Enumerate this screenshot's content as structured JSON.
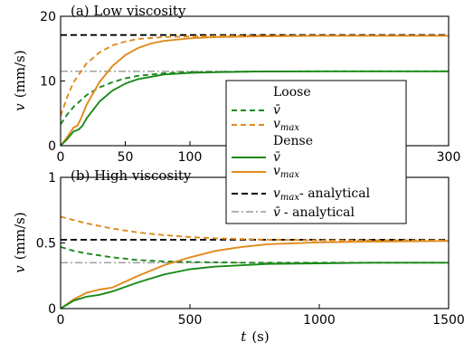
{
  "chart_data": [
    {
      "type": "line",
      "title": "(a) Low viscosity",
      "xlabel": "",
      "ylabel_symbol": "v",
      "ylabel_unit": "(mm/s)",
      "xlim": [
        0,
        300
      ],
      "ylim": [
        0,
        20
      ],
      "x_ticks": [
        0,
        50,
        100,
        300
      ],
      "x_tick_labels": [
        "0",
        "50",
        "100",
        "300"
      ],
      "y_ticks": [
        0,
        10,
        20
      ],
      "y_tick_labels": [
        "0",
        "10",
        "20"
      ],
      "series": [
        {
          "key": "max_analytical",
          "color": "#000000",
          "dash": "7,4",
          "x": [
            0,
            300
          ],
          "y": [
            17.1,
            17.1
          ]
        },
        {
          "key": "mean_analytical",
          "color": "#999999",
          "dash": "8,3,2,3",
          "x": [
            0,
            300
          ],
          "y": [
            11.5,
            11.5
          ]
        },
        {
          "key": "loose_max",
          "color": "#e08a1c",
          "dash": "6,4",
          "x": [
            0,
            5,
            10,
            20,
            30,
            40,
            50,
            60,
            80,
            100,
            120,
            150,
            200,
            250,
            300
          ],
          "y": [
            4.6,
            7.5,
            9.8,
            12.7,
            14.4,
            15.5,
            16.1,
            16.5,
            16.8,
            16.9,
            16.95,
            17.0,
            17.0,
            17.0,
            17.0
          ]
        },
        {
          "key": "loose_mean",
          "color": "#1a8a1a",
          "dash": "6,4",
          "x": [
            0,
            5,
            10,
            20,
            30,
            40,
            50,
            60,
            80,
            100,
            120,
            150,
            200,
            250,
            300
          ],
          "y": [
            3.3,
            4.8,
            6.0,
            7.8,
            9.0,
            9.8,
            10.4,
            10.8,
            11.2,
            11.35,
            11.4,
            11.45,
            11.5,
            11.5,
            11.5
          ]
        },
        {
          "key": "dense_max",
          "color": "#e08a1c",
          "dash": "",
          "x": [
            0,
            5,
            10,
            13,
            16,
            20,
            30,
            40,
            50,
            60,
            70,
            80,
            100,
            120,
            150,
            200,
            250,
            300
          ],
          "y": [
            0,
            1.3,
            2.8,
            3.1,
            4.3,
            6.3,
            9.8,
            12.3,
            14.0,
            15.1,
            15.8,
            16.2,
            16.6,
            16.8,
            16.9,
            17.0,
            17.0,
            17.0
          ]
        },
        {
          "key": "dense_mean",
          "color": "#1a8a1a",
          "dash": "",
          "x": [
            0,
            5,
            10,
            14,
            17,
            20,
            30,
            40,
            50,
            60,
            80,
            100,
            120,
            150,
            200,
            250,
            300
          ],
          "y": [
            0,
            1.0,
            2.2,
            2.5,
            3.1,
            4.2,
            6.8,
            8.5,
            9.6,
            10.3,
            11.0,
            11.25,
            11.35,
            11.45,
            11.5,
            11.5,
            11.5
          ]
        }
      ]
    },
    {
      "type": "line",
      "title": "(b) High viscosity",
      "xlabel_symbol": "t",
      "xlabel_unit": "(s)",
      "ylabel_symbol": "v",
      "ylabel_unit": "(mm/s)",
      "xlim": [
        0,
        1500
      ],
      "ylim": [
        0,
        1
      ],
      "x_ticks": [
        0,
        500,
        1000,
        1500
      ],
      "x_tick_labels": [
        "0",
        "500",
        "1000",
        "1500"
      ],
      "y_ticks": [
        0,
        0.5,
        1
      ],
      "y_tick_labels": [
        "0",
        "0.5",
        "1"
      ],
      "series": [
        {
          "key": "max_analytical",
          "color": "#000000",
          "dash": "7,4",
          "x": [
            0,
            1500
          ],
          "y": [
            0.525,
            0.525
          ]
        },
        {
          "key": "mean_analytical",
          "color": "#999999",
          "dash": "8,3,2,3",
          "x": [
            0,
            1500
          ],
          "y": [
            0.35,
            0.35
          ]
        },
        {
          "key": "loose_max",
          "color": "#e08a1c",
          "dash": "6,4",
          "x": [
            0,
            100,
            200,
            300,
            400,
            500,
            600,
            800,
            1000,
            1200,
            1500
          ],
          "y": [
            0.7,
            0.65,
            0.61,
            0.58,
            0.56,
            0.545,
            0.535,
            0.525,
            0.52,
            0.52,
            0.52
          ]
        },
        {
          "key": "loose_mean",
          "color": "#1a8a1a",
          "dash": "6,4",
          "x": [
            0,
            50,
            100,
            200,
            300,
            400,
            500,
            700,
            1000,
            1500
          ],
          "y": [
            0.47,
            0.44,
            0.42,
            0.39,
            0.37,
            0.36,
            0.355,
            0.35,
            0.35,
            0.35
          ]
        },
        {
          "key": "dense_max",
          "color": "#e08a1c",
          "dash": "",
          "x": [
            0,
            50,
            100,
            150,
            200,
            300,
            400,
            500,
            600,
            700,
            800,
            1000,
            1200,
            1500
          ],
          "y": [
            0,
            0.07,
            0.12,
            0.145,
            0.16,
            0.25,
            0.33,
            0.39,
            0.44,
            0.47,
            0.49,
            0.505,
            0.51,
            0.515
          ]
        },
        {
          "key": "dense_mean",
          "color": "#1a8a1a",
          "dash": "",
          "x": [
            0,
            50,
            100,
            150,
            200,
            300,
            400,
            500,
            600,
            800,
            1000,
            1200,
            1500
          ],
          "y": [
            0,
            0.06,
            0.09,
            0.105,
            0.13,
            0.2,
            0.26,
            0.3,
            0.32,
            0.34,
            0.345,
            0.35,
            0.35
          ]
        }
      ]
    }
  ],
  "legend": {
    "loose_heading": "Loose",
    "dense_heading": "Dense",
    "mean_symbol": "v̄",
    "max_symbol": "v",
    "max_subscript": "max",
    "max_analytical_suffix": "- analytical",
    "mean_analytical_suffix": "- analytical"
  }
}
